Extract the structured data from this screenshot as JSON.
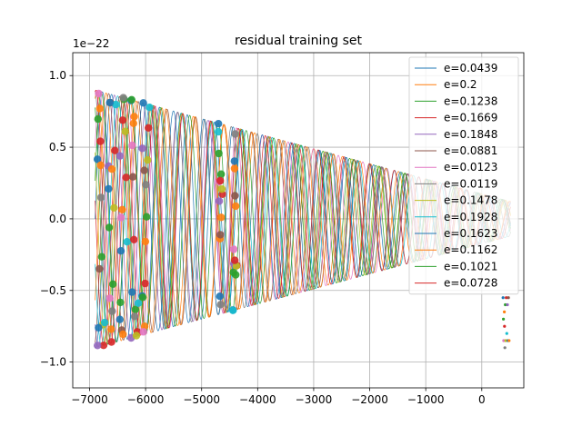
{
  "chart_data": {
    "type": "line",
    "title": "residual training set",
    "xlabel": "",
    "ylabel": "",
    "y_scale_label": "1e−22",
    "xlim": [
      -7300,
      750
    ],
    "ylim": [
      -1.18,
      1.16
    ],
    "x_ticks": [
      -7000,
      -6000,
      -5000,
      -4000,
      -3000,
      -2000,
      -1000,
      0
    ],
    "x_tick_labels": [
      "−7000",
      "−6000",
      "−5000",
      "−4000",
      "−3000",
      "−2000",
      "−1000",
      "0"
    ],
    "y_ticks": [
      -1.0,
      -0.5,
      0.0,
      0.5,
      1.0
    ],
    "y_tick_labels": [
      "−1.0",
      "−0.5",
      "0.0",
      "0.5",
      "1.0"
    ],
    "grid": true,
    "legend_position": "upper-right",
    "x_start": -6900,
    "x_end": 520,
    "start_amplitude": 0.9,
    "end_amplitude": 0.12,
    "series": [
      {
        "name": "e=0.0439",
        "color": "#1f77b4",
        "period": 520,
        "phase": 0.0
      },
      {
        "name": "e=0.2",
        "color": "#ff7f0e",
        "period": 590,
        "phase": 1.2
      },
      {
        "name": "e=0.1238",
        "color": "#2ca02c",
        "period": 550,
        "phase": 2.1
      },
      {
        "name": "e=0.1669",
        "color": "#d62728",
        "period": 570,
        "phase": 3.0
      },
      {
        "name": "e=0.1848",
        "color": "#9467bd",
        "period": 580,
        "phase": 4.1
      },
      {
        "name": "e=0.0881",
        "color": "#8c564b",
        "period": 535,
        "phase": 5.0
      },
      {
        "name": "e=0.0123",
        "color": "#e377c2",
        "period": 510,
        "phase": 0.6
      },
      {
        "name": "e=0.0119",
        "color": "#7f7f7f",
        "period": 508,
        "phase": 1.7
      },
      {
        "name": "e=0.1478",
        "color": "#bcbd22",
        "period": 560,
        "phase": 2.6
      },
      {
        "name": "e=0.1928",
        "color": "#17becf",
        "period": 585,
        "phase": 3.5
      },
      {
        "name": "e=0.1623",
        "color": "#1f77b4",
        "period": 568,
        "phase": 4.6
      },
      {
        "name": "e=0.1162",
        "color": "#ff7f0e",
        "period": 547,
        "phase": 5.6
      },
      {
        "name": "e=0.1021",
        "color": "#2ca02c",
        "period": 542,
        "phase": 0.3
      },
      {
        "name": "e=0.0728",
        "color": "#d62728",
        "period": 530,
        "phase": 1.4
      }
    ]
  }
}
